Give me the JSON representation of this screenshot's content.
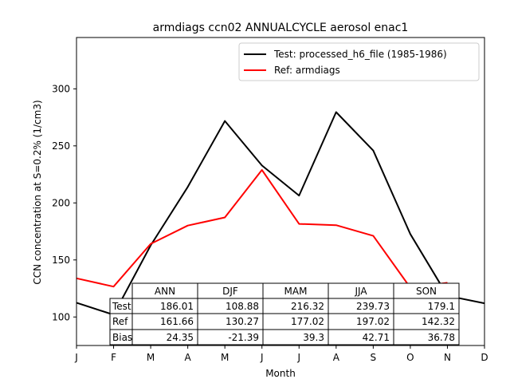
{
  "chart_data": {
    "type": "line",
    "title": "armdiags ccn02 ANNUALCYCLE aerosol enac1",
    "xlabel": "Month",
    "ylabel": "CCN concentration at S=0.2% (1/cm3)",
    "x_tick_labels": [
      "J",
      "F",
      "M",
      "A",
      "M",
      "J",
      "J",
      "A",
      "S",
      "O",
      "N",
      "D"
    ],
    "x": [
      1,
      2,
      3,
      4,
      5,
      6,
      7,
      8,
      9,
      10,
      11,
      12
    ],
    "xlim": [
      1,
      12
    ],
    "ylim": [
      75,
      345
    ],
    "yticks": [
      100,
      150,
      200,
      250,
      300
    ],
    "legend_position": "top-right",
    "series": [
      {
        "name": "Test: processed_h6_file (1985-1986)",
        "color": "#000000",
        "values": [
          112.5,
          101.9,
          162.8,
          214.0,
          271.8,
          232.8,
          206.4,
          279.6,
          245.9,
          172.7,
          118.6,
          112.0
        ]
      },
      {
        "name": "Ref: armdiags",
        "color": "#ff0000",
        "values": [
          133.9,
          126.6,
          164.1,
          180.1,
          187.3,
          228.9,
          181.6,
          180.5,
          171.1,
          125.7,
          130.0,
          null
        ]
      }
    ],
    "table": {
      "columns": [
        "ANN",
        "DJF",
        "MAM",
        "JJA",
        "SON"
      ],
      "rows": [
        {
          "label": "Test",
          "values": [
            "186.01",
            "108.88",
            "216.32",
            "239.73",
            "179.1"
          ]
        },
        {
          "label": "Ref",
          "values": [
            "161.66",
            "130.27",
            "177.02",
            "197.02",
            "142.32"
          ]
        },
        {
          "label": "Bias",
          "values": [
            "24.35",
            "-21.39",
            "39.3",
            "42.71",
            "36.78"
          ]
        }
      ]
    }
  }
}
